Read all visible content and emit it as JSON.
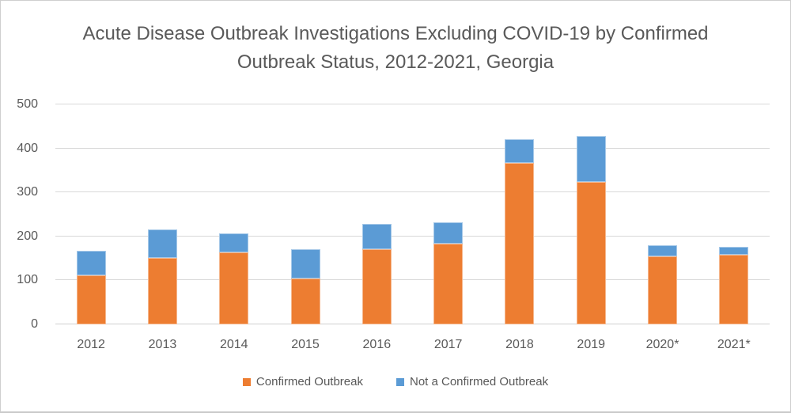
{
  "title": "Acute Disease Outbreak Investigations Excluding COVID-19 by Confirmed Outbreak Status, 2012-2021, Georgia",
  "chart_data": {
    "type": "bar",
    "stacked": true,
    "title": "Acute Disease Outbreak Investigations Excluding COVID-19 by Confirmed Outbreak Status, 2012-2021, Georgia",
    "categories": [
      "2012",
      "2013",
      "2014",
      "2015",
      "2016",
      "2017",
      "2018",
      "2019",
      "2020*",
      "2021*"
    ],
    "series": [
      {
        "name": "Confirmed Outbreak",
        "color": "#ED7D31",
        "values": [
          111,
          151,
          163,
          105,
          170,
          183,
          367,
          323,
          155,
          158
        ]
      },
      {
        "name": "Not a Confirmed Outbreak",
        "color": "#5B9BD5",
        "values": [
          57,
          65,
          44,
          66,
          59,
          49,
          54,
          106,
          25,
          18
        ]
      }
    ],
    "stack_totals": [
      168,
      216,
      207,
      171,
      229,
      232,
      421,
      429,
      180,
      176
    ],
    "xlabel": "",
    "ylabel": "",
    "ylim": [
      0,
      500
    ],
    "yticks": [
      0,
      100,
      200,
      300,
      400,
      500
    ],
    "grid": true,
    "legend_position": "bottom"
  },
  "colors": {
    "confirmed": "#ED7D31",
    "not_confirmed": "#5B9BD5",
    "gridline": "#D9D9D9",
    "text": "#595959",
    "background": "#FFFFFF",
    "frame_border": "#CFCFCF"
  }
}
